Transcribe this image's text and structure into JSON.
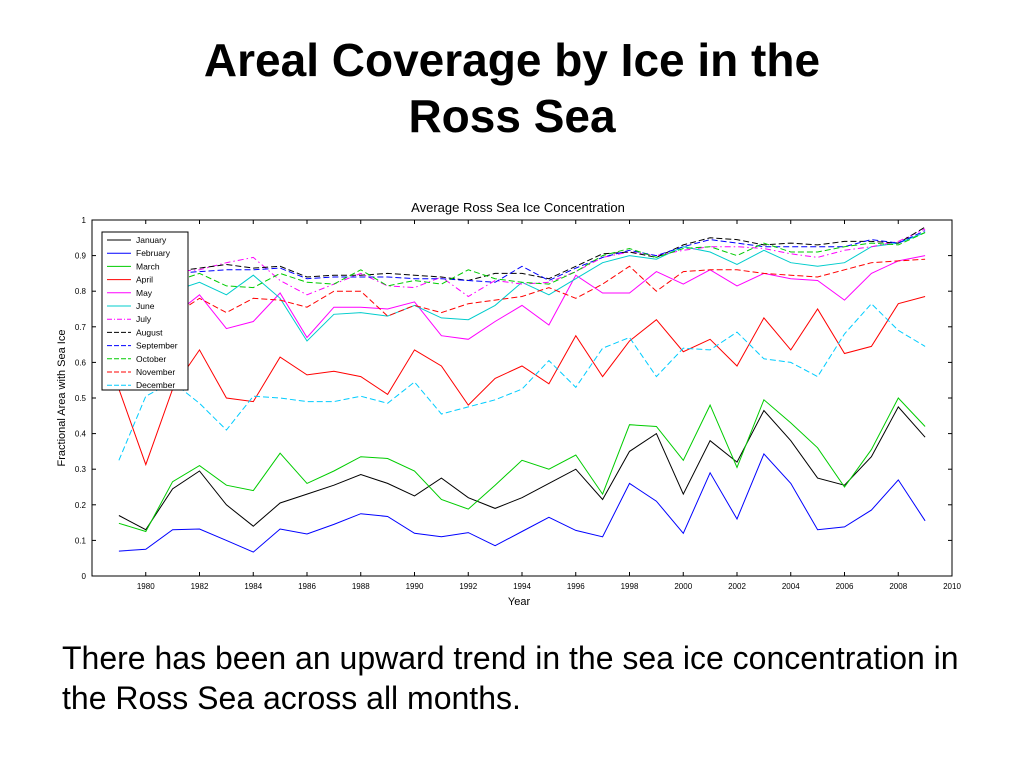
{
  "slide": {
    "title_line1": "Areal Coverage by Ice in the",
    "title_line2": "Ross Sea",
    "caption": "There has been an upward trend in the sea ice concentration in the Ross Sea across all months."
  },
  "chart_data": {
    "type": "line",
    "title": "Average Ross Sea Ice Concentration",
    "xlabel": "Year",
    "ylabel": "Fractional Area with Sea Ice",
    "xlim": [
      1978,
      2010
    ],
    "ylim": [
      0,
      1
    ],
    "xticks": [
      "1980",
      "1982",
      "1984",
      "1986",
      "1988",
      "1990",
      "1992",
      "1994",
      "1996",
      "1998",
      "2000",
      "2002",
      "2004",
      "2006",
      "2008",
      "2010"
    ],
    "yticks": [
      "0",
      "0.1",
      "0.2",
      "0.3",
      "0.4",
      "0.5",
      "0.6",
      "0.7",
      "0.8",
      "0.9",
      "1"
    ],
    "grid": false,
    "legend_position": "top-left",
    "x": [
      1979,
      1980,
      1981,
      1982,
      1983,
      1984,
      1985,
      1986,
      1987,
      1988,
      1989,
      1990,
      1991,
      1992,
      1993,
      1994,
      1995,
      1996,
      1997,
      1998,
      1999,
      2000,
      2001,
      2002,
      2003,
      2004,
      2005,
      2006,
      2007,
      2008,
      2009
    ],
    "series": [
      {
        "name": "January",
        "color": "#000000",
        "dash": "solid",
        "values": [
          0.17,
          0.13,
          0.245,
          0.295,
          0.2,
          0.14,
          0.205,
          0.23,
          0.255,
          0.285,
          0.26,
          0.225,
          0.275,
          0.22,
          0.19,
          0.22,
          0.26,
          0.3,
          0.215,
          0.35,
          0.4,
          0.23,
          0.38,
          0.32,
          0.465,
          0.38,
          0.275,
          0.255,
          0.335,
          0.475,
          0.39
        ]
      },
      {
        "name": "February",
        "color": "#0000ff",
        "dash": "solid",
        "values": [
          0.07,
          0.075,
          0.13,
          0.132,
          0.1,
          0.067,
          0.132,
          0.118,
          0.145,
          0.175,
          0.167,
          0.12,
          0.11,
          0.122,
          0.085,
          0.125,
          0.165,
          0.128,
          0.11,
          0.26,
          0.21,
          0.12,
          0.29,
          0.16,
          0.343,
          0.26,
          0.13,
          0.138,
          0.185,
          0.27,
          0.155
        ]
      },
      {
        "name": "March",
        "color": "#00cc00",
        "dash": "solid",
        "values": [
          0.148,
          0.125,
          0.265,
          0.31,
          0.255,
          0.24,
          0.345,
          0.26,
          0.295,
          0.335,
          0.33,
          0.295,
          0.215,
          0.188,
          0.255,
          0.325,
          0.3,
          0.34,
          0.23,
          0.425,
          0.42,
          0.325,
          0.48,
          0.305,
          0.495,
          0.43,
          0.36,
          0.25,
          0.355,
          0.5,
          0.42
        ]
      },
      {
        "name": "April",
        "color": "#ff0000",
        "dash": "solid",
        "values": [
          0.525,
          0.313,
          0.525,
          0.635,
          0.5,
          0.49,
          0.615,
          0.565,
          0.575,
          0.56,
          0.51,
          0.635,
          0.59,
          0.48,
          0.555,
          0.59,
          0.54,
          0.675,
          0.56,
          0.66,
          0.72,
          0.63,
          0.665,
          0.59,
          0.725,
          0.635,
          0.75,
          0.625,
          0.645,
          0.765,
          0.785
        ]
      },
      {
        "name": "May",
        "color": "#ff00ff",
        "dash": "solid",
        "values": [
          0.795,
          0.695,
          0.73,
          0.79,
          0.695,
          0.715,
          0.795,
          0.67,
          0.755,
          0.755,
          0.75,
          0.77,
          0.675,
          0.665,
          0.715,
          0.76,
          0.705,
          0.845,
          0.795,
          0.795,
          0.855,
          0.82,
          0.86,
          0.815,
          0.85,
          0.835,
          0.83,
          0.775,
          0.85,
          0.885,
          0.9
        ]
      },
      {
        "name": "June",
        "color": "#00cccc",
        "dash": "solid",
        "values": [
          0.815,
          0.835,
          0.8,
          0.825,
          0.79,
          0.845,
          0.78,
          0.66,
          0.735,
          0.74,
          0.73,
          0.76,
          0.725,
          0.72,
          0.76,
          0.825,
          0.79,
          0.835,
          0.88,
          0.9,
          0.89,
          0.925,
          0.91,
          0.875,
          0.915,
          0.88,
          0.87,
          0.88,
          0.925,
          0.935,
          0.965
        ]
      },
      {
        "name": "July",
        "color": "#ff00ff",
        "dash": "dashdot",
        "values": [
          0.82,
          0.84,
          0.855,
          0.86,
          0.88,
          0.895,
          0.83,
          0.79,
          0.82,
          0.85,
          0.815,
          0.81,
          0.84,
          0.785,
          0.83,
          0.82,
          0.825,
          0.855,
          0.895,
          0.91,
          0.9,
          0.915,
          0.925,
          0.925,
          0.92,
          0.905,
          0.895,
          0.915,
          0.925,
          0.94,
          0.975
        ]
      },
      {
        "name": "August",
        "color": "#000000",
        "dash": "dash",
        "values": [
          0.86,
          0.855,
          0.855,
          0.865,
          0.875,
          0.865,
          0.87,
          0.84,
          0.845,
          0.845,
          0.85,
          0.845,
          0.84,
          0.83,
          0.85,
          0.85,
          0.835,
          0.87,
          0.905,
          0.91,
          0.895,
          0.93,
          0.95,
          0.945,
          0.93,
          0.935,
          0.93,
          0.94,
          0.94,
          0.935,
          0.98
        ]
      },
      {
        "name": "September",
        "color": "#0000ff",
        "dash": "dash",
        "values": [
          0.855,
          0.845,
          0.85,
          0.855,
          0.86,
          0.86,
          0.865,
          0.835,
          0.84,
          0.84,
          0.84,
          0.835,
          0.835,
          0.83,
          0.825,
          0.87,
          0.83,
          0.865,
          0.895,
          0.915,
          0.9,
          0.925,
          0.945,
          0.935,
          0.925,
          0.925,
          0.925,
          0.925,
          0.945,
          0.935,
          0.97
        ]
      },
      {
        "name": "October",
        "color": "#00cc00",
        "dash": "dash",
        "values": [
          0.84,
          0.82,
          0.825,
          0.85,
          0.815,
          0.81,
          0.85,
          0.825,
          0.82,
          0.86,
          0.815,
          0.83,
          0.82,
          0.86,
          0.835,
          0.825,
          0.82,
          0.855,
          0.9,
          0.92,
          0.895,
          0.92,
          0.925,
          0.9,
          0.935,
          0.91,
          0.91,
          0.925,
          0.935,
          0.93,
          0.965
        ]
      },
      {
        "name": "November",
        "color": "#ff0000",
        "dash": "dash",
        "values": [
          0.81,
          0.77,
          0.73,
          0.78,
          0.74,
          0.78,
          0.775,
          0.755,
          0.8,
          0.8,
          0.73,
          0.76,
          0.74,
          0.765,
          0.775,
          0.785,
          0.81,
          0.78,
          0.82,
          0.87,
          0.8,
          0.855,
          0.86,
          0.86,
          0.85,
          0.845,
          0.84,
          0.86,
          0.88,
          0.885,
          0.89
        ]
      },
      {
        "name": "December",
        "color": "#00ccff",
        "dash": "dash",
        "values": [
          0.325,
          0.505,
          0.545,
          0.485,
          0.41,
          0.505,
          0.5,
          0.49,
          0.49,
          0.505,
          0.485,
          0.545,
          0.455,
          0.475,
          0.495,
          0.525,
          0.605,
          0.53,
          0.64,
          0.67,
          0.56,
          0.64,
          0.635,
          0.685,
          0.61,
          0.6,
          0.56,
          0.68,
          0.765,
          0.69,
          0.645
        ]
      }
    ]
  }
}
